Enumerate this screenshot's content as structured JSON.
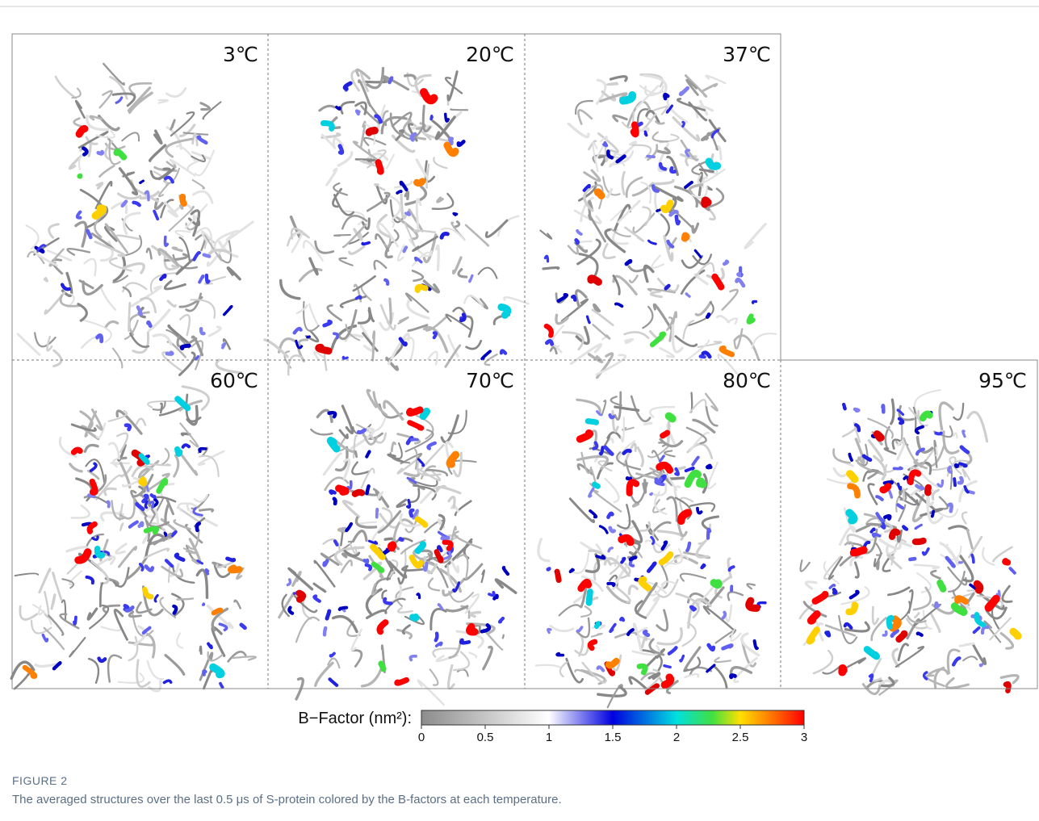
{
  "figure": {
    "panels": [
      {
        "label": "3℃"
      },
      {
        "label": "20℃"
      },
      {
        "label": "37℃"
      },
      {
        "label": "60℃"
      },
      {
        "label": "70℃"
      },
      {
        "label": "80℃"
      },
      {
        "label": "95℃"
      }
    ],
    "colorbar": {
      "label": "B−Factor (nm²):",
      "range": [
        0,
        3
      ],
      "ticks": [
        0,
        0.5,
        1,
        1.5,
        2,
        2.5,
        3
      ]
    },
    "caption": {
      "title": "FIGURE 2",
      "text": "The averaged structures over the last 0.5 μs of S-protein colored by the B-factors at each temperature."
    }
  }
}
